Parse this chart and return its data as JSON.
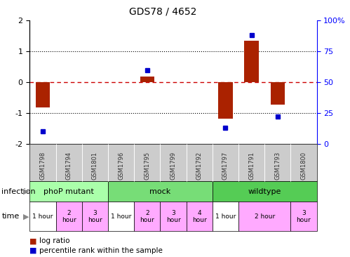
{
  "title": "GDS78 / 4652",
  "samples": [
    "GSM1798",
    "GSM1794",
    "GSM1801",
    "GSM1796",
    "GSM1795",
    "GSM1799",
    "GSM1792",
    "GSM1797",
    "GSM1791",
    "GSM1793",
    "GSM1800"
  ],
  "log_ratio": [
    -0.82,
    0.0,
    0.0,
    0.0,
    0.18,
    0.0,
    0.0,
    -1.18,
    1.35,
    -0.72,
    0.0
  ],
  "percentile": [
    10,
    0,
    0,
    0,
    60,
    0,
    0,
    13,
    88,
    22,
    0
  ],
  "infection_groups": [
    {
      "label": "phoP mutant",
      "start": 0,
      "end": 3,
      "color": "#aaffaa"
    },
    {
      "label": "mock",
      "start": 3,
      "end": 7,
      "color": "#77dd77"
    },
    {
      "label": "wildtype",
      "start": 7,
      "end": 11,
      "color": "#55cc55"
    }
  ],
  "time_data": [
    [
      0,
      1,
      "1 hour",
      "#ffffff"
    ],
    [
      1,
      2,
      "2\nhour",
      "#ffaaff"
    ],
    [
      2,
      3,
      "3\nhour",
      "#ffaaff"
    ],
    [
      3,
      4,
      "1 hour",
      "#ffffff"
    ],
    [
      4,
      5,
      "2\nhour",
      "#ffaaff"
    ],
    [
      5,
      6,
      "3\nhour",
      "#ffaaff"
    ],
    [
      6,
      7,
      "4\nhour",
      "#ffaaff"
    ],
    [
      7,
      8,
      "1 hour",
      "#ffffff"
    ],
    [
      8,
      10,
      "2 hour",
      "#ffaaff"
    ],
    [
      10,
      11,
      "3\nhour",
      "#ffaaff"
    ]
  ],
  "ylim": [
    -2,
    2
  ],
  "y2lim": [
    0,
    100
  ],
  "yticks": [
    -2,
    -1,
    0,
    1,
    2
  ],
  "y2ticks": [
    0,
    25,
    50,
    75,
    100
  ],
  "y2ticklabels": [
    "0",
    "25",
    "50",
    "75",
    "100%"
  ],
  "bar_color": "#aa2200",
  "dot_color": "#0000cc",
  "bg_color": "#ffffff",
  "zero_line_color": "#cc0000",
  "label_red": "log ratio",
  "label_blue": "percentile rank within the sample",
  "sample_bg_color": "#cccccc"
}
